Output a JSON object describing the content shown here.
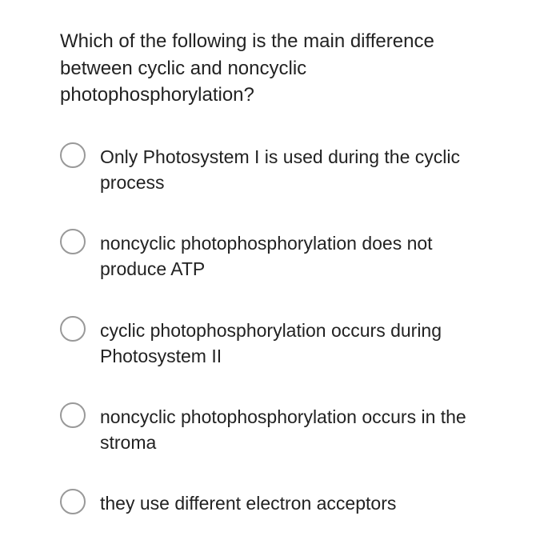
{
  "question": {
    "text": "Which of the following is the main difference between cyclic and noncyclic photophosphorylation?"
  },
  "options": [
    {
      "label": "Only Photosystem I is used during the cyclic process"
    },
    {
      "label": "noncyclic photophosphorylation does not produce ATP"
    },
    {
      "label": "cyclic photophosphorylation occurs during Photosystem II"
    },
    {
      "label": "noncyclic photophosphorylation occurs in the stroma"
    },
    {
      "label": "they use different electron acceptors"
    }
  ],
  "colors": {
    "background": "#ffffff",
    "text": "#222222",
    "radio_border": "#999999"
  },
  "typography": {
    "question_fontsize": 24,
    "option_fontsize": 23,
    "font_family": "Arial"
  }
}
